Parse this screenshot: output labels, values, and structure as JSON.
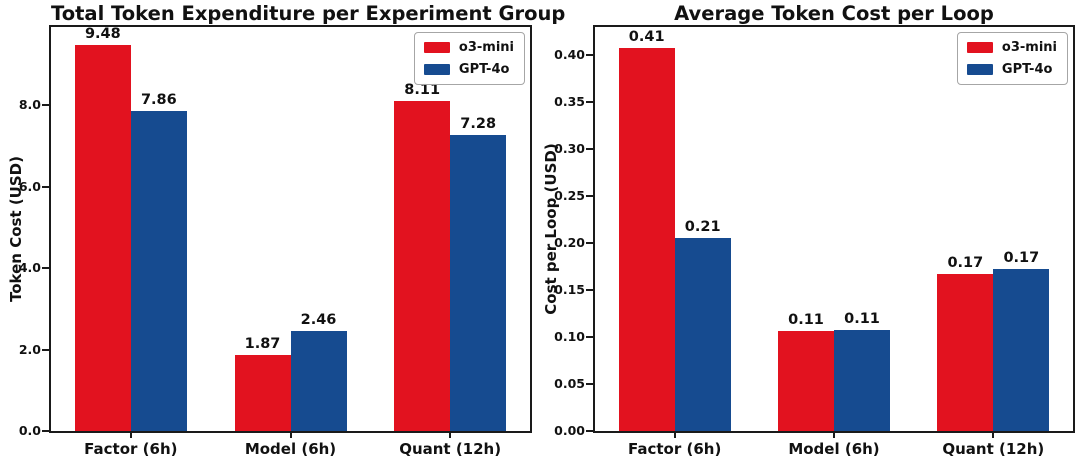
{
  "figure": {
    "background_color": "#ffffff",
    "text_color": "#111111"
  },
  "chart_data": [
    {
      "type": "bar",
      "title": "Total Token Expenditure per Experiment Group",
      "xlabel": "",
      "ylabel": "Token Cost (USD)",
      "categories": [
        "Factor (6h)",
        "Model (6h)",
        "Quant (12h)"
      ],
      "series": [
        {
          "name": "o3-mini",
          "color": "#e2121f",
          "values": [
            9.48,
            1.87,
            8.11
          ],
          "labels": [
            "9.48",
            "1.87",
            "8.11"
          ]
        },
        {
          "name": "GPT-4o",
          "color": "#164b90",
          "values": [
            7.86,
            2.46,
            7.28
          ],
          "labels": [
            "7.86",
            "2.46",
            "7.28"
          ]
        }
      ],
      "ylim": [
        0,
        9.92
      ],
      "yticks": [
        {
          "value": 0,
          "label": "0.0"
        },
        {
          "value": 2,
          "label": "2.0"
        },
        {
          "value": 4,
          "label": "4.0"
        },
        {
          "value": 6,
          "label": "6.0"
        },
        {
          "value": 8,
          "label": "8.0"
        }
      ],
      "legend_position": "upper-right",
      "grid": false
    },
    {
      "type": "bar",
      "title": "Average Token Cost per Loop",
      "xlabel": "",
      "ylabel": "Cost per Loop (USD)",
      "categories": [
        "Factor (6h)",
        "Model (6h)",
        "Quant (12h)"
      ],
      "series": [
        {
          "name": "o3-mini",
          "color": "#e2121f",
          "values": [
            0.41,
            0.11,
            0.17
          ],
          "plot_values": [
            0.408,
            0.106,
            0.167
          ],
          "labels": [
            "0.41",
            "0.11",
            "0.17"
          ]
        },
        {
          "name": "GPT-4o",
          "color": "#164b90",
          "values": [
            0.21,
            0.11,
            0.17
          ],
          "plot_values": [
            0.205,
            0.108,
            0.172
          ],
          "labels": [
            "0.21",
            "0.11",
            "0.17"
          ]
        }
      ],
      "ylim": [
        0,
        0.43
      ],
      "yticks": [
        {
          "value": 0.0,
          "label": "0.00"
        },
        {
          "value": 0.05,
          "label": "0.05"
        },
        {
          "value": 0.1,
          "label": "0.10"
        },
        {
          "value": 0.15,
          "label": "0.15"
        },
        {
          "value": 0.2,
          "label": "0.20"
        },
        {
          "value": 0.25,
          "label": "0.25"
        },
        {
          "value": 0.3,
          "label": "0.30"
        },
        {
          "value": 0.35,
          "label": "0.35"
        },
        {
          "value": 0.4,
          "label": "0.40"
        }
      ],
      "legend_position": "upper-right",
      "grid": false
    }
  ]
}
